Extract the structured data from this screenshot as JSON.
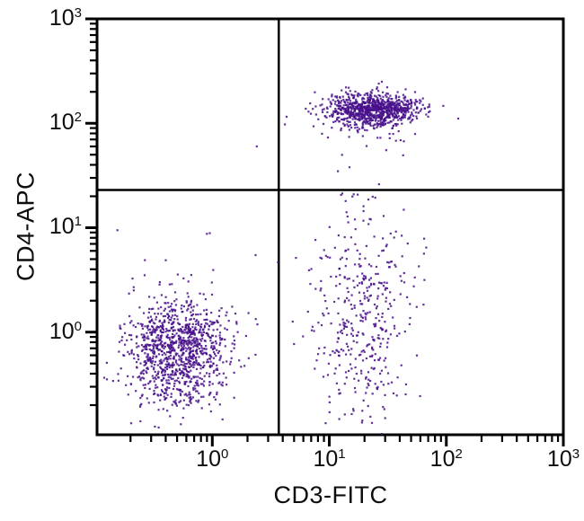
{
  "figure": {
    "kind": "flow-cytometry-quadrant-dot-plot"
  },
  "chart_data": {
    "type": "scatter",
    "title": "",
    "xlabel": "CD3-FITC",
    "ylabel": "CD4-APC",
    "x_scale": "log",
    "y_scale": "log",
    "x_range": [
      0.1035,
      1000
    ],
    "y_range": [
      0.104,
      1000
    ],
    "x_major_tick_exponents": [
      0,
      1,
      2,
      3
    ],
    "y_major_tick_exponents": [
      0,
      1,
      2,
      3
    ],
    "tick_label_base": "10",
    "grid": false,
    "legend": false,
    "quadrant_gates": {
      "x": 3.7,
      "y": 23
    },
    "dot_color": "#470f8a",
    "dot_opacity": 0.85,
    "dot_size_px": 2.2,
    "axis_color": "#000000",
    "random_seed": 1337,
    "populations": [
      {
        "name": "CD3- CD4- double-negative lymphocytes (lower left)",
        "count": 1080,
        "x_log10_mean": -0.3,
        "x_log10_sd": 0.21,
        "y_log10_mean": -0.2,
        "y_log10_sd": 0.26,
        "approx_center": {
          "x": 0.5,
          "y": 0.63
        }
      },
      {
        "name": "CD3+ CD4+ helper T cells (upper middle, dense band)",
        "count": 840,
        "x_log10_mean": 1.37,
        "x_log10_sd": 0.2,
        "y_log10_mean": 2.13,
        "y_log10_sd": 0.075,
        "approx_center": {
          "x": 23,
          "y": 135
        }
      },
      {
        "name": "CD3+ CD4+ loose tail below dense band",
        "count": 90,
        "x_log10_mean": 1.33,
        "x_log10_sd": 0.27,
        "y_log10_mean": 2.04,
        "y_log10_sd": 0.17,
        "approx_center": {
          "x": 21,
          "y": 110
        }
      },
      {
        "name": "CD3+ CD4- T cells (lower right, vertical scatter)",
        "count": 420,
        "x_log10_mean": 1.29,
        "x_log10_sd": 0.22,
        "y_log10_mean": 0.12,
        "y_log10_sd": 0.52,
        "approx_center": {
          "x": 19,
          "y": 1.3
        }
      },
      {
        "name": "sparse background debris",
        "count": 40,
        "x_log10_mean": -0.15,
        "x_log10_sd": 0.5,
        "y_log10_mean": -0.05,
        "y_log10_sd": 0.5,
        "approx_center": {
          "x": 0.7,
          "y": 0.9
        }
      }
    ],
    "outlier_points": [
      {
        "x": 2.4,
        "y": 60
      }
    ]
  }
}
